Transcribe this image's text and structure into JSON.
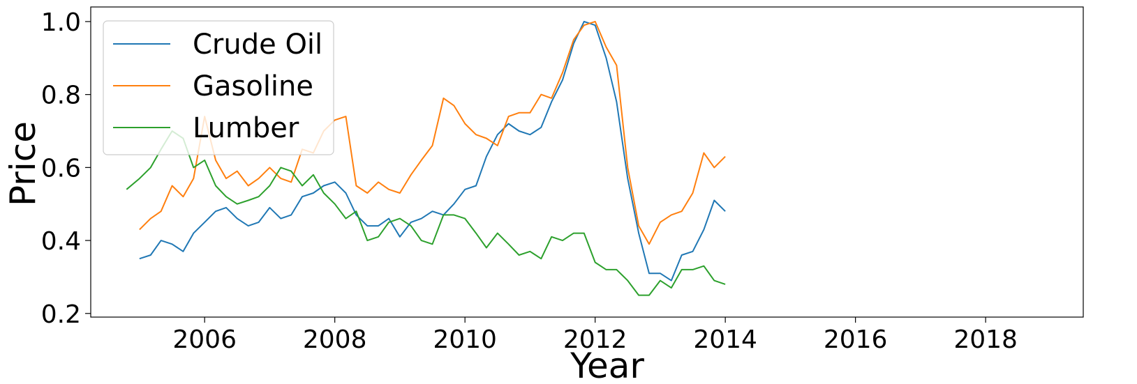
{
  "chart_data": {
    "type": "line",
    "xlabel": "Year",
    "ylabel": "Price",
    "xlim": [
      2004.25,
      2019.5
    ],
    "ylim": [
      0.19,
      1.04
    ],
    "x_ticks": [
      2006,
      2008,
      2010,
      2012,
      2014,
      2016,
      2018
    ],
    "y_ticks": [
      0.2,
      0.4,
      0.6,
      0.8,
      1.0
    ],
    "x_tick_labels": [
      "2006",
      "2008",
      "2010",
      "2012",
      "2014",
      "2016",
      "2018"
    ],
    "y_tick_labels": [
      "0.2",
      "0.4",
      "0.6",
      "0.8",
      "1.0"
    ],
    "grid": false,
    "legend_position": "top-left",
    "series": [
      {
        "name": "Crude Oil",
        "color": "#1f77b4",
        "points": [
          [
            2005.0,
            0.35
          ],
          [
            2005.17,
            0.36
          ],
          [
            2005.33,
            0.4
          ],
          [
            2005.5,
            0.39
          ],
          [
            2005.67,
            0.37
          ],
          [
            2005.83,
            0.42
          ],
          [
            2006.0,
            0.45
          ],
          [
            2006.17,
            0.48
          ],
          [
            2006.33,
            0.49
          ],
          [
            2006.5,
            0.46
          ],
          [
            2006.67,
            0.44
          ],
          [
            2006.83,
            0.45
          ],
          [
            2007.0,
            0.49
          ],
          [
            2007.17,
            0.46
          ],
          [
            2007.33,
            0.47
          ],
          [
            2007.5,
            0.52
          ],
          [
            2007.67,
            0.53
          ],
          [
            2007.83,
            0.55
          ],
          [
            2008.0,
            0.56
          ],
          [
            2008.17,
            0.53
          ],
          [
            2008.33,
            0.47
          ],
          [
            2008.5,
            0.44
          ],
          [
            2008.67,
            0.44
          ],
          [
            2008.83,
            0.46
          ],
          [
            2009.0,
            0.41
          ],
          [
            2009.17,
            0.45
          ],
          [
            2009.33,
            0.46
          ],
          [
            2009.5,
            0.48
          ],
          [
            2009.67,
            0.47
          ],
          [
            2009.83,
            0.5
          ],
          [
            2010.0,
            0.54
          ],
          [
            2010.17,
            0.55
          ],
          [
            2010.33,
            0.63
          ],
          [
            2010.5,
            0.69
          ],
          [
            2010.67,
            0.72
          ],
          [
            2010.83,
            0.7
          ],
          [
            2011.0,
            0.69
          ],
          [
            2011.17,
            0.71
          ],
          [
            2011.33,
            0.78
          ],
          [
            2011.5,
            0.84
          ],
          [
            2011.67,
            0.94
          ],
          [
            2011.83,
            1.0
          ],
          [
            2012.0,
            0.99
          ],
          [
            2012.17,
            0.9
          ],
          [
            2012.33,
            0.78
          ],
          [
            2012.5,
            0.57
          ],
          [
            2012.67,
            0.42
          ],
          [
            2012.83,
            0.31
          ],
          [
            2013.0,
            0.31
          ],
          [
            2013.17,
            0.29
          ],
          [
            2013.33,
            0.36
          ],
          [
            2013.5,
            0.37
          ],
          [
            2013.67,
            0.43
          ],
          [
            2013.83,
            0.51
          ],
          [
            2014.0,
            0.48
          ]
        ]
      },
      {
        "name": "Gasoline",
        "color": "#ff7f0e",
        "points": [
          [
            2005.0,
            0.43
          ],
          [
            2005.17,
            0.46
          ],
          [
            2005.33,
            0.48
          ],
          [
            2005.5,
            0.55
          ],
          [
            2005.67,
            0.52
          ],
          [
            2005.83,
            0.57
          ],
          [
            2006.0,
            0.74
          ],
          [
            2006.17,
            0.62
          ],
          [
            2006.33,
            0.57
          ],
          [
            2006.5,
            0.59
          ],
          [
            2006.67,
            0.55
          ],
          [
            2006.83,
            0.57
          ],
          [
            2007.0,
            0.6
          ],
          [
            2007.17,
            0.57
          ],
          [
            2007.33,
            0.56
          ],
          [
            2007.5,
            0.65
          ],
          [
            2007.67,
            0.64
          ],
          [
            2007.83,
            0.7
          ],
          [
            2008.0,
            0.73
          ],
          [
            2008.17,
            0.74
          ],
          [
            2008.33,
            0.55
          ],
          [
            2008.5,
            0.53
          ],
          [
            2008.67,
            0.56
          ],
          [
            2008.83,
            0.54
          ],
          [
            2009.0,
            0.53
          ],
          [
            2009.17,
            0.58
          ],
          [
            2009.33,
            0.62
          ],
          [
            2009.5,
            0.66
          ],
          [
            2009.67,
            0.79
          ],
          [
            2009.83,
            0.77
          ],
          [
            2010.0,
            0.72
          ],
          [
            2010.17,
            0.69
          ],
          [
            2010.33,
            0.68
          ],
          [
            2010.5,
            0.66
          ],
          [
            2010.67,
            0.74
          ],
          [
            2010.83,
            0.75
          ],
          [
            2011.0,
            0.75
          ],
          [
            2011.17,
            0.8
          ],
          [
            2011.33,
            0.79
          ],
          [
            2011.5,
            0.86
          ],
          [
            2011.67,
            0.95
          ],
          [
            2011.83,
            0.99
          ],
          [
            2012.0,
            1.0
          ],
          [
            2012.17,
            0.93
          ],
          [
            2012.33,
            0.88
          ],
          [
            2012.5,
            0.6
          ],
          [
            2012.67,
            0.44
          ],
          [
            2012.83,
            0.39
          ],
          [
            2013.0,
            0.45
          ],
          [
            2013.17,
            0.47
          ],
          [
            2013.33,
            0.48
          ],
          [
            2013.5,
            0.53
          ],
          [
            2013.67,
            0.64
          ],
          [
            2013.83,
            0.6
          ],
          [
            2014.0,
            0.63
          ]
        ]
      },
      {
        "name": "Lumber",
        "color": "#2ca02c",
        "points": [
          [
            2004.8,
            0.54
          ],
          [
            2005.0,
            0.57
          ],
          [
            2005.17,
            0.6
          ],
          [
            2005.33,
            0.65
          ],
          [
            2005.5,
            0.7
          ],
          [
            2005.67,
            0.68
          ],
          [
            2005.83,
            0.6
          ],
          [
            2006.0,
            0.62
          ],
          [
            2006.17,
            0.55
          ],
          [
            2006.33,
            0.52
          ],
          [
            2006.5,
            0.5
          ],
          [
            2006.67,
            0.51
          ],
          [
            2006.83,
            0.52
          ],
          [
            2007.0,
            0.55
          ],
          [
            2007.17,
            0.6
          ],
          [
            2007.33,
            0.59
          ],
          [
            2007.5,
            0.55
          ],
          [
            2007.67,
            0.58
          ],
          [
            2007.83,
            0.53
          ],
          [
            2008.0,
            0.5
          ],
          [
            2008.17,
            0.46
          ],
          [
            2008.33,
            0.48
          ],
          [
            2008.5,
            0.4
          ],
          [
            2008.67,
            0.41
          ],
          [
            2008.83,
            0.45
          ],
          [
            2009.0,
            0.46
          ],
          [
            2009.17,
            0.44
          ],
          [
            2009.33,
            0.4
          ],
          [
            2009.5,
            0.39
          ],
          [
            2009.67,
            0.47
          ],
          [
            2009.83,
            0.47
          ],
          [
            2010.0,
            0.46
          ],
          [
            2010.17,
            0.42
          ],
          [
            2010.33,
            0.38
          ],
          [
            2010.5,
            0.42
          ],
          [
            2010.67,
            0.39
          ],
          [
            2010.83,
            0.36
          ],
          [
            2011.0,
            0.37
          ],
          [
            2011.17,
            0.35
          ],
          [
            2011.33,
            0.41
          ],
          [
            2011.5,
            0.4
          ],
          [
            2011.67,
            0.42
          ],
          [
            2011.83,
            0.42
          ],
          [
            2012.0,
            0.34
          ],
          [
            2012.17,
            0.32
          ],
          [
            2012.33,
            0.32
          ],
          [
            2012.5,
            0.29
          ],
          [
            2012.67,
            0.25
          ],
          [
            2012.83,
            0.25
          ],
          [
            2013.0,
            0.29
          ],
          [
            2013.17,
            0.27
          ],
          [
            2013.33,
            0.32
          ],
          [
            2013.5,
            0.32
          ],
          [
            2013.67,
            0.33
          ],
          [
            2013.83,
            0.29
          ],
          [
            2014.0,
            0.28
          ]
        ]
      }
    ]
  }
}
